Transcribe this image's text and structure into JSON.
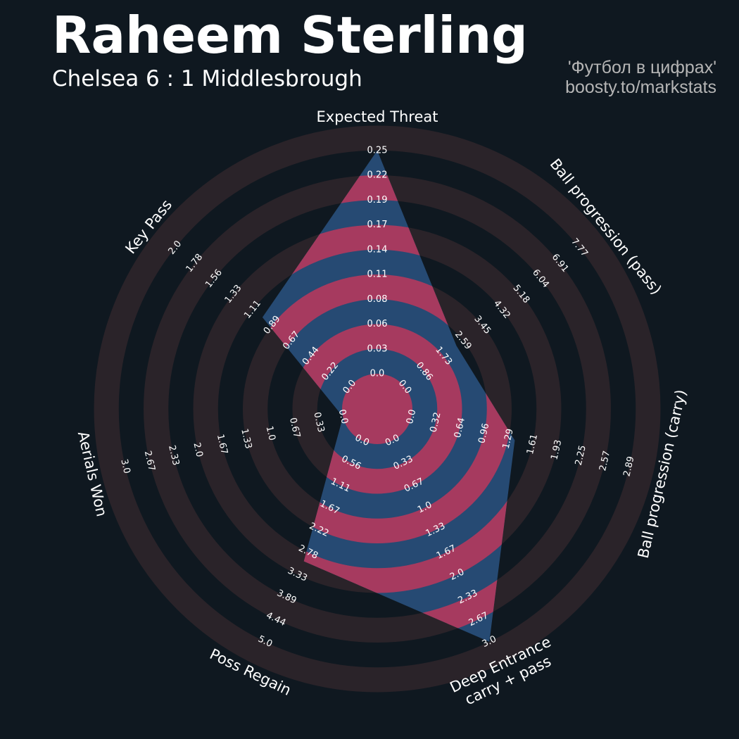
{
  "header": {
    "player_name": "Raheem Sterling",
    "match": "Chelsea 6 : 1 Middlesbrough",
    "credit_line1": "'Футбол в цифрах'",
    "credit_line2": "boosty.to/markstats"
  },
  "colors": {
    "background": "#0f1820",
    "ring": "#2a2329",
    "player_fill_blue": "#264a73",
    "player_fill_red": "#a63a5f",
    "label_text": "#ffffff"
  },
  "chart_data": {
    "type": "radar",
    "title": "Raheem Sterling",
    "subtitle": "Chelsea 6 : 1 Middlesbrough",
    "axes": [
      {
        "label": "Expected Threat",
        "min": 0.0,
        "max": 0.25,
        "value": 0.25,
        "ticks": [
          "0.0",
          "0.03",
          "0.06",
          "0.08",
          "0.11",
          "0.14",
          "0.17",
          "0.19",
          "0.22",
          "0.25"
        ]
      },
      {
        "label": "Ball progression (pass)",
        "min": 0.0,
        "max": 7.77,
        "value": 2.3,
        "ticks": [
          "0.0",
          "0.86",
          "1.73",
          "2.59",
          "3.45",
          "4.32",
          "5.18",
          "6.04",
          "6.91",
          "7.77"
        ]
      },
      {
        "label": "Ball progression (carry)",
        "min": 0.0,
        "max": 2.89,
        "value": 1.37,
        "ticks": [
          "0.0",
          "0.32",
          "0.64",
          "0.96",
          "1.29",
          "1.61",
          "1.93",
          "2.25",
          "2.57",
          "2.89"
        ]
      },
      {
        "label": "Deep Entrance\ncarry + pass",
        "min": 0.0,
        "max": 3.0,
        "value": 3.0,
        "ticks": [
          "0.0",
          "0.33",
          "0.67",
          "1.0",
          "1.33",
          "1.67",
          "2.0",
          "2.33",
          "2.67",
          "3.0"
        ]
      },
      {
        "label": "Poss Regain",
        "min": 0.0,
        "max": 5.0,
        "value": 3.0,
        "ticks": [
          "0.0",
          "0.56",
          "1.11",
          "1.67",
          "2.22",
          "2.78",
          "3.33",
          "3.89",
          "4.44",
          "5.0"
        ]
      },
      {
        "label": "Aerials Won",
        "min": 0.0,
        "max": 3.0,
        "value": 0.0,
        "ticks": [
          "0.0",
          "0.33",
          "0.67",
          "1.0",
          "1.33",
          "1.67",
          "2.0",
          "2.33",
          "2.67",
          "3.0"
        ]
      },
      {
        "label": "Key Pass",
        "min": 0.0,
        "max": 2.0,
        "value": 1.0,
        "ticks": [
          "0.0",
          "0.22",
          "0.44",
          "0.67",
          "0.89",
          "1.11",
          "1.33",
          "1.56",
          "1.78",
          "2.0"
        ]
      }
    ]
  }
}
